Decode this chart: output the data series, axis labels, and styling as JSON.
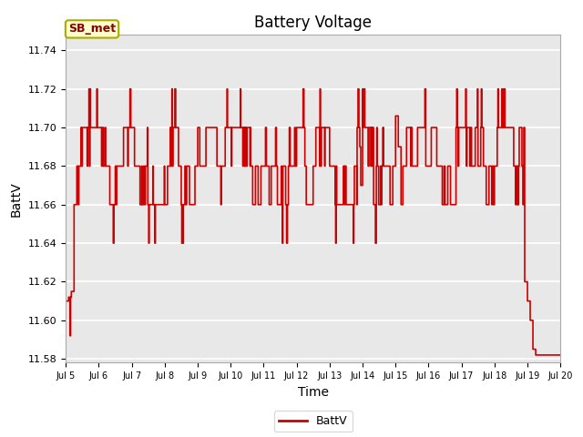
{
  "title": "Battery Voltage",
  "xlabel": "Time",
  "ylabel": "BattV",
  "ylim": [
    11.578,
    11.748
  ],
  "xlim": [
    0,
    360
  ],
  "ytick_values": [
    11.58,
    11.6,
    11.62,
    11.64,
    11.66,
    11.68,
    11.7,
    11.72,
    11.74
  ],
  "xtick_positions": [
    0,
    24,
    48,
    72,
    96,
    120,
    144,
    168,
    192,
    216,
    240,
    264,
    288,
    312,
    336,
    360
  ],
  "xtick_labels": [
    "Jul 5",
    "Jul 6",
    "Jul 7",
    "Jul 8",
    "Jul 9",
    "Jul 10",
    "Jul 11",
    "Jul 12",
    "Jul 13",
    "Jul 14",
    "Jul 15",
    "Jul 16",
    "Jul 17",
    "Jul 18",
    "Jul 19",
    "Jul 20"
  ],
  "line_color": "#cc0000",
  "line_width": 1.2,
  "bg_color": "#e8e8e8",
  "plot_bg_light": "#f0f0f0",
  "ann_text": "SB_met",
  "ann_bg": "#ffffcc",
  "ann_fg": "#880000",
  "legend_label": "BattV",
  "title_fs": 12,
  "axis_fs": 10,
  "tick_fs": 8
}
